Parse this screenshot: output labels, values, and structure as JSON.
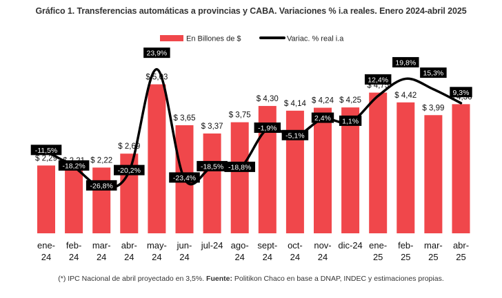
{
  "chart_data": {
    "type": "bar",
    "title": "Gráfico 1. Transferencias automáticas a provincias y CABA. Variaciones % i.a reales. Enero 2024-abril 2025",
    "categories": [
      [
        "ene-",
        "24"
      ],
      [
        "feb-",
        "24"
      ],
      [
        "mar-",
        "24"
      ],
      [
        "abr-",
        "24"
      ],
      [
        "may-",
        "24"
      ],
      [
        "jun-",
        "24"
      ],
      [
        "jul-24"
      ],
      [
        "ago-",
        "24"
      ],
      [
        "sept-",
        "24"
      ],
      [
        "oct-",
        "24"
      ],
      [
        "nov-",
        "24"
      ],
      [
        "dic-24"
      ],
      [
        "ene-",
        "25"
      ],
      [
        "feb-",
        "25"
      ],
      [
        "mar-",
        "25"
      ],
      [
        "abr-",
        "25"
      ]
    ],
    "series": [
      {
        "name": "En Billones de $",
        "kind": "bar",
        "values": [
          2.29,
          2.21,
          2.22,
          2.69,
          5.03,
          3.65,
          3.37,
          3.75,
          4.3,
          4.14,
          4.24,
          4.25,
          4.75,
          4.42,
          3.99,
          4.36
        ],
        "labels": [
          "$ 2,29",
          "$ 2,21",
          "$ 2,22",
          "$ 2,69",
          "$ 5,03",
          "$ 3,65",
          "$ 3,37",
          "$ 3,75",
          "$ 4,30",
          "$ 4,14",
          "$ 4,24",
          "$ 4,25",
          "$ 4,75",
          "$ 4,42",
          "$ 3,99",
          "$ 4,36"
        ]
      },
      {
        "name": "Variac. % real i.a",
        "kind": "line",
        "values": [
          -11.5,
          -18.2,
          -26.8,
          -20.2,
          23.9,
          -23.4,
          -18.5,
          -18.8,
          -1.9,
          -5.1,
          2.4,
          1.1,
          12.4,
          19.8,
          15.3,
          9.3
        ],
        "labels": [
          "-11,5%",
          "-18,2%",
          "-26,8%",
          "-20,2%",
          "23,9%",
          "-23,4%",
          "-18,5%",
          "-18,8%",
          "-1,9%",
          "-5,1%",
          "2,4%",
          "1,1%",
          "12,4%",
          "19,8%",
          "15,3%",
          "9,3%"
        ]
      }
    ],
    "ylim_bars": [
      0,
      5.6
    ],
    "ylim_line": [
      -46,
      33
    ],
    "legend_position": "top-center",
    "grid": false,
    "colors": {
      "bar": "#f0474b",
      "line": "#000000",
      "label_bg": "#000000",
      "label_text": "#ffffff"
    }
  },
  "footnote": {
    "prefix": "(*) IPC Nacional de abril proyectado en 3,5%. ",
    "bold": "Fuente:",
    "rest": " Politikon Chaco en base a DNAP, INDEC y estimaciones propias."
  }
}
